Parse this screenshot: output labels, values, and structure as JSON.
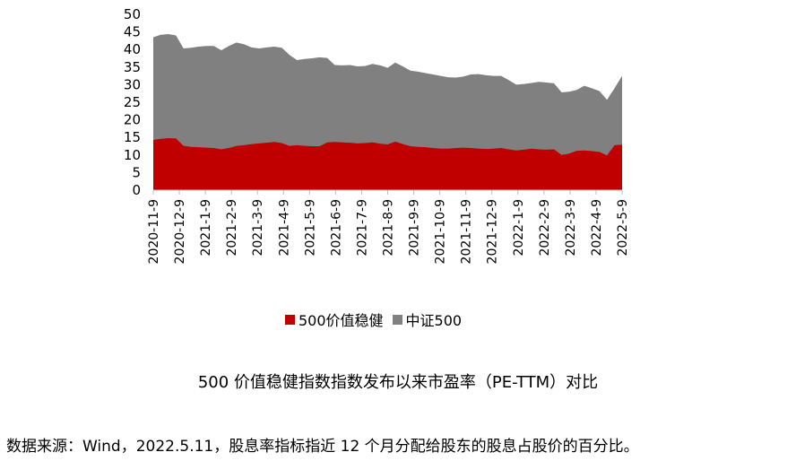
{
  "chart_data": {
    "type": "area",
    "title": "",
    "xlabel": "",
    "ylabel": "",
    "ylim": [
      0,
      50
    ],
    "yticks": [
      "0",
      "5",
      "10",
      "15",
      "20",
      "25",
      "30",
      "35",
      "40",
      "45",
      "50"
    ],
    "x_tick_labels": [
      "2020-11-9",
      "2020-12-9",
      "2021-1-9",
      "2021-2-9",
      "2021-3-9",
      "2021-4-9",
      "2021-5-9",
      "2021-6-9",
      "2021-7-9",
      "2021-8-9",
      "2021-9-9",
      "2021-10-9",
      "2021-11-9",
      "2021-12-9",
      "2022-1-9",
      "2022-2-9",
      "2022-3-9",
      "2022-4-9",
      "2022-5-9"
    ],
    "legend_position": "bottom",
    "grid": false,
    "series": [
      {
        "name": "500价值稳健",
        "color": "#c00000",
        "values": [
          14.3,
          14.6,
          14.8,
          14.7,
          12.6,
          12.3,
          12.2,
          12.1,
          12.0,
          11.6,
          12.0,
          12.6,
          12.8,
          13.1,
          13.3,
          13.5,
          13.7,
          13.4,
          12.6,
          12.8,
          12.6,
          12.5,
          12.5,
          13.6,
          13.7,
          13.6,
          13.5,
          13.3,
          13.4,
          13.6,
          13.2,
          13.0,
          13.8,
          13.1,
          12.5,
          12.3,
          12.2,
          12.0,
          11.8,
          11.8,
          12.0,
          12.1,
          12.0,
          11.8,
          11.7,
          11.8,
          12.0,
          11.6,
          11.3,
          11.5,
          11.8,
          11.6,
          11.5,
          11.6,
          10.0,
          10.4,
          11.2,
          11.3,
          11.1,
          10.9,
          9.9,
          12.8,
          12.9
        ]
      },
      {
        "name": "中证500",
        "color": "#808080",
        "values": [
          43.5,
          44.2,
          44.4,
          44.0,
          40.3,
          40.5,
          40.8,
          41.0,
          41.0,
          39.8,
          41.0,
          42.0,
          41.5,
          40.6,
          40.3,
          40.6,
          40.8,
          40.5,
          38.5,
          37.0,
          37.3,
          37.5,
          37.8,
          37.6,
          35.6,
          35.5,
          35.6,
          35.2,
          35.3,
          35.9,
          35.5,
          34.8,
          36.3,
          35.2,
          34.0,
          33.7,
          33.3,
          32.9,
          32.5,
          32.1,
          32.0,
          32.3,
          32.9,
          33.0,
          32.7,
          32.5,
          32.5,
          31.3,
          30.0,
          30.2,
          30.5,
          30.8,
          30.6,
          30.4,
          27.8,
          28.0,
          28.5,
          29.7,
          29.0,
          28.2,
          25.7,
          29.0,
          32.5
        ]
      }
    ]
  },
  "legend": [
    {
      "label": "500价值稳健",
      "color": "#c00000"
    },
    {
      "label": "中证500",
      "color": "#808080"
    }
  ],
  "caption": "500 价值稳健指数指数发布以来市盈率（PE-TTM）对比",
  "note": "数据来源：Wind，2022.5.11，股息率指标指近 12 个月分配给股东的股息占股价的百分比。"
}
